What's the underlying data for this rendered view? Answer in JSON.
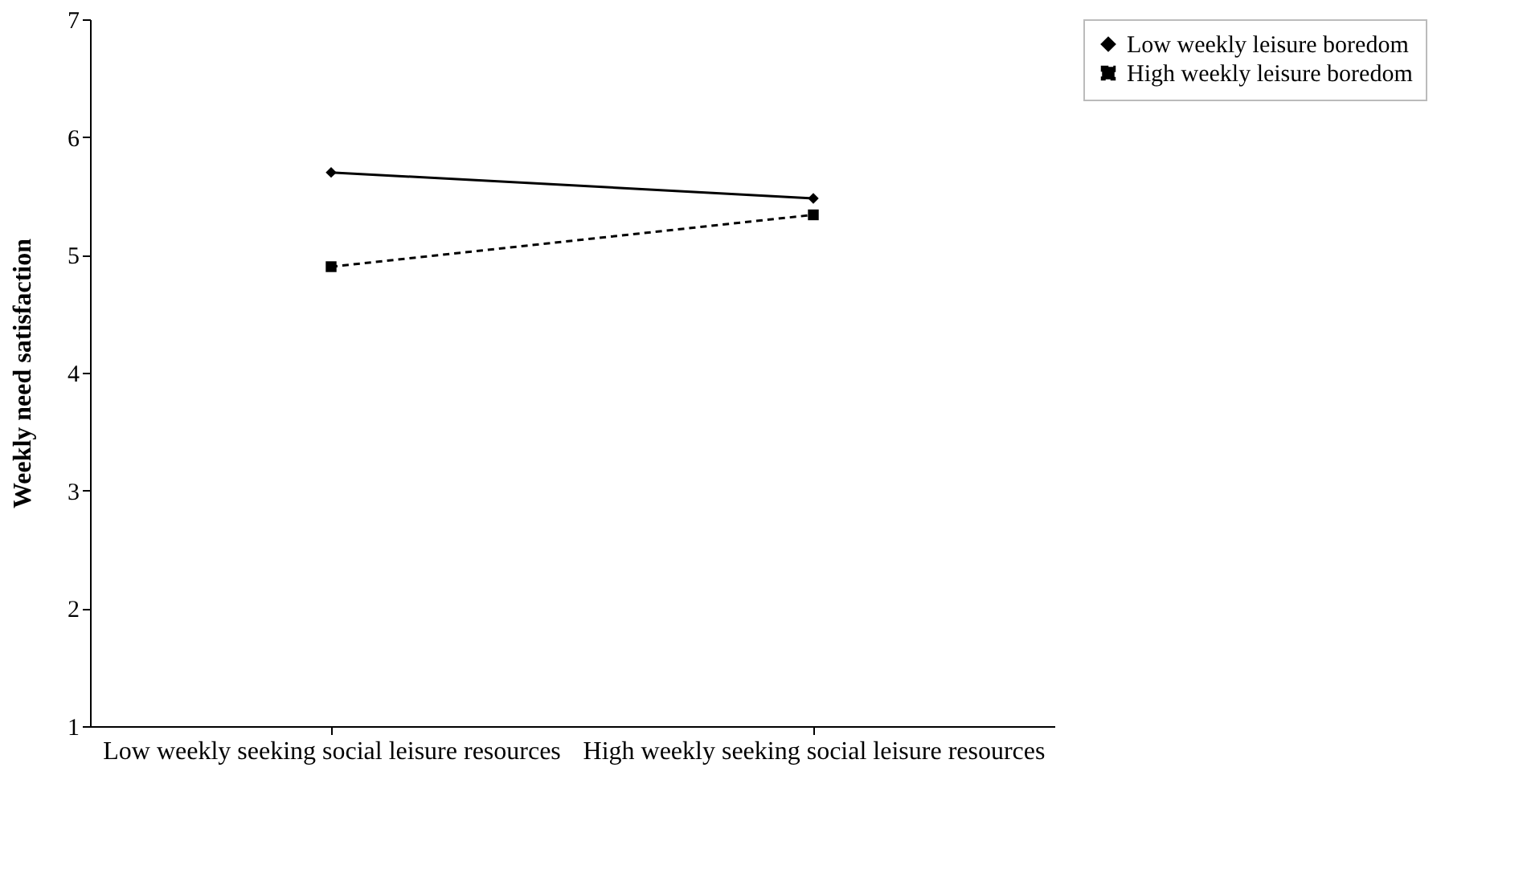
{
  "chart_data": {
    "type": "line",
    "ylabel": "Weekly need satisfaction",
    "categories": [
      "Low weekly seeking social leisure resources",
      "High weekly seeking social leisure resources"
    ],
    "series": [
      {
        "name": "Low weekly leisure boredom",
        "color": "#000000",
        "values": [
          5.7,
          5.48
        ],
        "marker": "diamond",
        "line_style": "solid"
      },
      {
        "name": "High weekly leisure boredom",
        "color": "#000000",
        "values": [
          4.9,
          5.34
        ],
        "marker": "square",
        "line_style": "dashed"
      }
    ],
    "ylim": [
      1,
      7
    ],
    "yticks": [
      1,
      2,
      3,
      4,
      5,
      6,
      7
    ],
    "grid": false,
    "legend": "right"
  }
}
